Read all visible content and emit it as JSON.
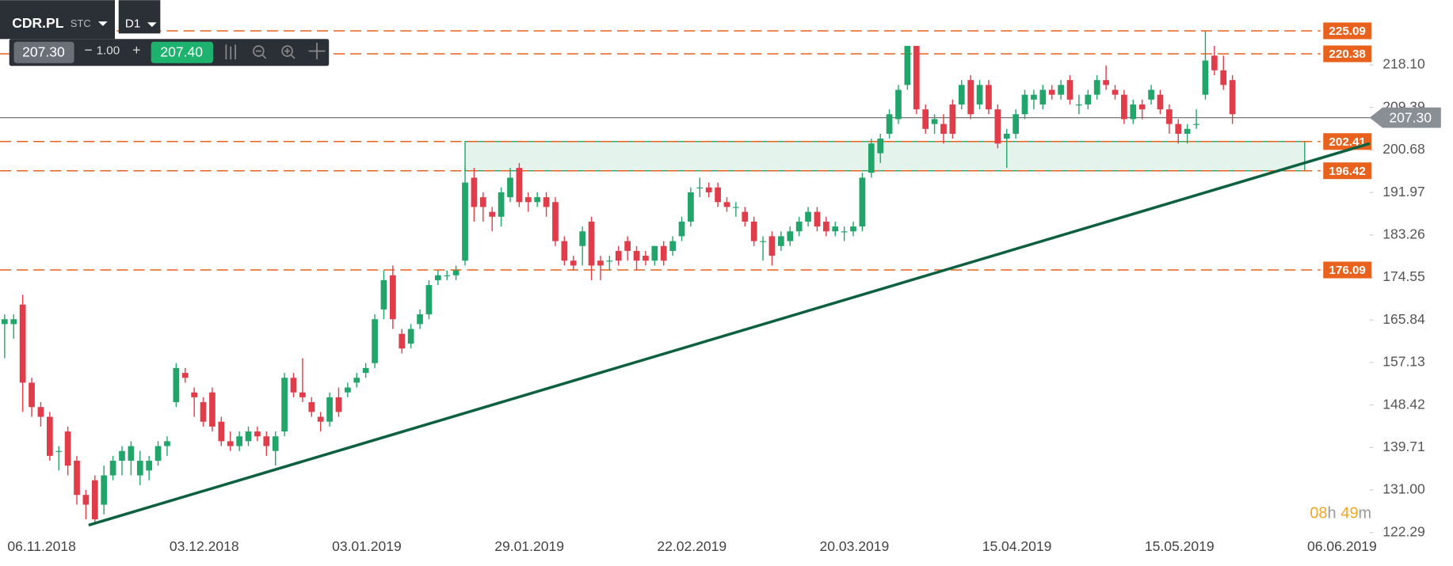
{
  "chart_data": {
    "type": "candlestick",
    "symbol": "CDR.PL",
    "market": "STC",
    "interval": "D1",
    "bid": "207.30",
    "spread": "1.00",
    "ask": "207.40",
    "up_color": "#22a56b",
    "down_color": "#e03c4a",
    "level_color": "#e8621d",
    "zone_color": "#22a56b",
    "trend_color": "#0d6040",
    "ohlc": [
      [
        165,
        167,
        158,
        166
      ],
      [
        165,
        167,
        162,
        166
      ],
      [
        169,
        171,
        147,
        153
      ],
      [
        153,
        154,
        146,
        148
      ],
      [
        148,
        149,
        144,
        146
      ],
      [
        146,
        147,
        137,
        138
      ],
      [
        139,
        140,
        135,
        139
      ],
      [
        143,
        144,
        134,
        136
      ],
      [
        137,
        138,
        128,
        130
      ],
      [
        130,
        131,
        125,
        128
      ],
      [
        133,
        134,
        124,
        125
      ],
      [
        128,
        136,
        126,
        134
      ],
      [
        134,
        138,
        133,
        137
      ],
      [
        137,
        140,
        134,
        139
      ],
      [
        137,
        141,
        134,
        140
      ],
      [
        134,
        139,
        132,
        137
      ],
      [
        135,
        138,
        133,
        137
      ],
      [
        137,
        141,
        136,
        140
      ],
      [
        140,
        142,
        138,
        141
      ],
      [
        149,
        157,
        148,
        156
      ],
      [
        155,
        156,
        153,
        154
      ],
      [
        151,
        152,
        146,
        150
      ],
      [
        149,
        150,
        144,
        145
      ],
      [
        151,
        152,
        143,
        144
      ],
      [
        145,
        146,
        140,
        141
      ],
      [
        141,
        143,
        139,
        140
      ],
      [
        140,
        143,
        139,
        142
      ],
      [
        141,
        144,
        140,
        143
      ],
      [
        143,
        144,
        141,
        142
      ],
      [
        142,
        143,
        138,
        140
      ],
      [
        139,
        143,
        136,
        142
      ],
      [
        143,
        155,
        142,
        154
      ],
      [
        154,
        155,
        150,
        151
      ],
      [
        151,
        158,
        149,
        150
      ],
      [
        149,
        150,
        146,
        147
      ],
      [
        146,
        147,
        143,
        145
      ],
      [
        145,
        151,
        144,
        150
      ],
      [
        150,
        152,
        146,
        147
      ],
      [
        151,
        153,
        150,
        152
      ],
      [
        153,
        155,
        152,
        154
      ],
      [
        155,
        157,
        154,
        156
      ],
      [
        157,
        167,
        156,
        166
      ],
      [
        168,
        176,
        166,
        174
      ],
      [
        175,
        177,
        164,
        166
      ],
      [
        163,
        164,
        159,
        160
      ],
      [
        161,
        165,
        160,
        164
      ],
      [
        165,
        168,
        164,
        167
      ],
      [
        167,
        174,
        166,
        173
      ],
      [
        174,
        176,
        173,
        175
      ],
      [
        175,
        176,
        174,
        175
      ],
      [
        175,
        177,
        174,
        176
      ],
      [
        178,
        197,
        177,
        194
      ],
      [
        195,
        197,
        186,
        189
      ],
      [
        191,
        192,
        186,
        189
      ],
      [
        188,
        189,
        184,
        187
      ],
      [
        187,
        193,
        185,
        192
      ],
      [
        191,
        197,
        190,
        195
      ],
      [
        197,
        198,
        189,
        190
      ],
      [
        191,
        192,
        188,
        190
      ],
      [
        190,
        192,
        189,
        191
      ],
      [
        191,
        192,
        187,
        189
      ],
      [
        190,
        191,
        181,
        182
      ],
      [
        182,
        183,
        177,
        178
      ],
      [
        178,
        179,
        176,
        177
      ],
      [
        181,
        185,
        177,
        184
      ],
      [
        186,
        187,
        174,
        177
      ],
      [
        178,
        179,
        174,
        177
      ],
      [
        178,
        179,
        176,
        178
      ],
      [
        180,
        181,
        177,
        178
      ],
      [
        182,
        183,
        178,
        180
      ],
      [
        180,
        181,
        176,
        178
      ],
      [
        179,
        180,
        177,
        178
      ],
      [
        178,
        181,
        177,
        181
      ],
      [
        181,
        182,
        177,
        178
      ],
      [
        180,
        183,
        179,
        182
      ],
      [
        183,
        187,
        182,
        186
      ],
      [
        186,
        193,
        185,
        192
      ],
      [
        193,
        195,
        191,
        193
      ],
      [
        193,
        194,
        191,
        192
      ],
      [
        193,
        194,
        189,
        190
      ],
      [
        190,
        191,
        188,
        189
      ],
      [
        189,
        190,
        187,
        189
      ],
      [
        188,
        189,
        185,
        186
      ],
      [
        186,
        187,
        181,
        182
      ],
      [
        182,
        183,
        178,
        182
      ],
      [
        183,
        184,
        177,
        179
      ],
      [
        181,
        184,
        180,
        183
      ],
      [
        182,
        185,
        181,
        184
      ],
      [
        184,
        187,
        183,
        186
      ],
      [
        186,
        189,
        185,
        188
      ],
      [
        188,
        189,
        184,
        185
      ],
      [
        186,
        187,
        183,
        184
      ],
      [
        184,
        186,
        183,
        185
      ],
      [
        184,
        185,
        182,
        184
      ],
      [
        184,
        186,
        183,
        185
      ],
      [
        185,
        196,
        184,
        195
      ],
      [
        196,
        203,
        195,
        202
      ],
      [
        200,
        204,
        198,
        203
      ],
      [
        204,
        209,
        203,
        208
      ],
      [
        207,
        214,
        206,
        213
      ],
      [
        214,
        222,
        213,
        222
      ],
      [
        222,
        222,
        208,
        209
      ],
      [
        209,
        210,
        204,
        205
      ],
      [
        206,
        208,
        204,
        207
      ],
      [
        206,
        208,
        202,
        204
      ],
      [
        210,
        211,
        203,
        204
      ],
      [
        210,
        215,
        209,
        214
      ],
      [
        215,
        216,
        207,
        208
      ],
      [
        210,
        215,
        209,
        214
      ],
      [
        214,
        215,
        208,
        209
      ],
      [
        209,
        210,
        201,
        202
      ],
      [
        203,
        205,
        197,
        204
      ],
      [
        204,
        209,
        203,
        208
      ],
      [
        208,
        213,
        207,
        212
      ],
      [
        211,
        213,
        209,
        212
      ],
      [
        210,
        214,
        209,
        213
      ],
      [
        213,
        214,
        211,
        212
      ],
      [
        212,
        215,
        211,
        214
      ],
      [
        215,
        216,
        210,
        211
      ],
      [
        210,
        212,
        208,
        210
      ],
      [
        210,
        213,
        209,
        212
      ],
      [
        212,
        216,
        211,
        215
      ],
      [
        215,
        218,
        213,
        214
      ],
      [
        213,
        214,
        211,
        212
      ],
      [
        212,
        213,
        206,
        207
      ],
      [
        207,
        211,
        206,
        210
      ],
      [
        210,
        211,
        207,
        209
      ],
      [
        211,
        214,
        210,
        213
      ],
      [
        212,
        213,
        208,
        209
      ],
      [
        209,
        210,
        204,
        206
      ],
      [
        206,
        207,
        202,
        204
      ],
      [
        204,
        206,
        202,
        205
      ],
      [
        206,
        209,
        205,
        206
      ],
      [
        212,
        225,
        211,
        219
      ],
      [
        220,
        222,
        216,
        217
      ],
      [
        217,
        220,
        213,
        214
      ],
      [
        215,
        216,
        206,
        208
      ]
    ],
    "levels": [
      225.09,
      220.38,
      202.41,
      196.42,
      176.09
    ],
    "zone": {
      "low": 196.42,
      "high": 202.41,
      "from": 51,
      "to": 144
    },
    "trendline": {
      "start": [
        9.3,
        123.8
      ],
      "end": [
        151.2,
        202.0
      ]
    },
    "last": {
      "value": 207.3,
      "label": "207.30"
    },
    "ylim": [
      115.46,
      231.38
    ],
    "yticks": [
      {
        "value": 218.1,
        "label": "218.10"
      },
      209.39,
      200.68,
      191.97,
      183.26,
      174.55,
      165.84,
      157.13,
      148.42,
      139.71,
      {
        "value": 131,
        "label": "131.00"
      },
      122.29
    ],
    "xticks": [
      "06.11.2018",
      "03.12.2018",
      "03.01.2019",
      "29.01.2019",
      "22.02.2019",
      "20.03.2019",
      "15.04.2019",
      "15.05.2019",
      "06.06.2019"
    ],
    "timer": [
      "08",
      "h",
      "49",
      "m"
    ]
  }
}
